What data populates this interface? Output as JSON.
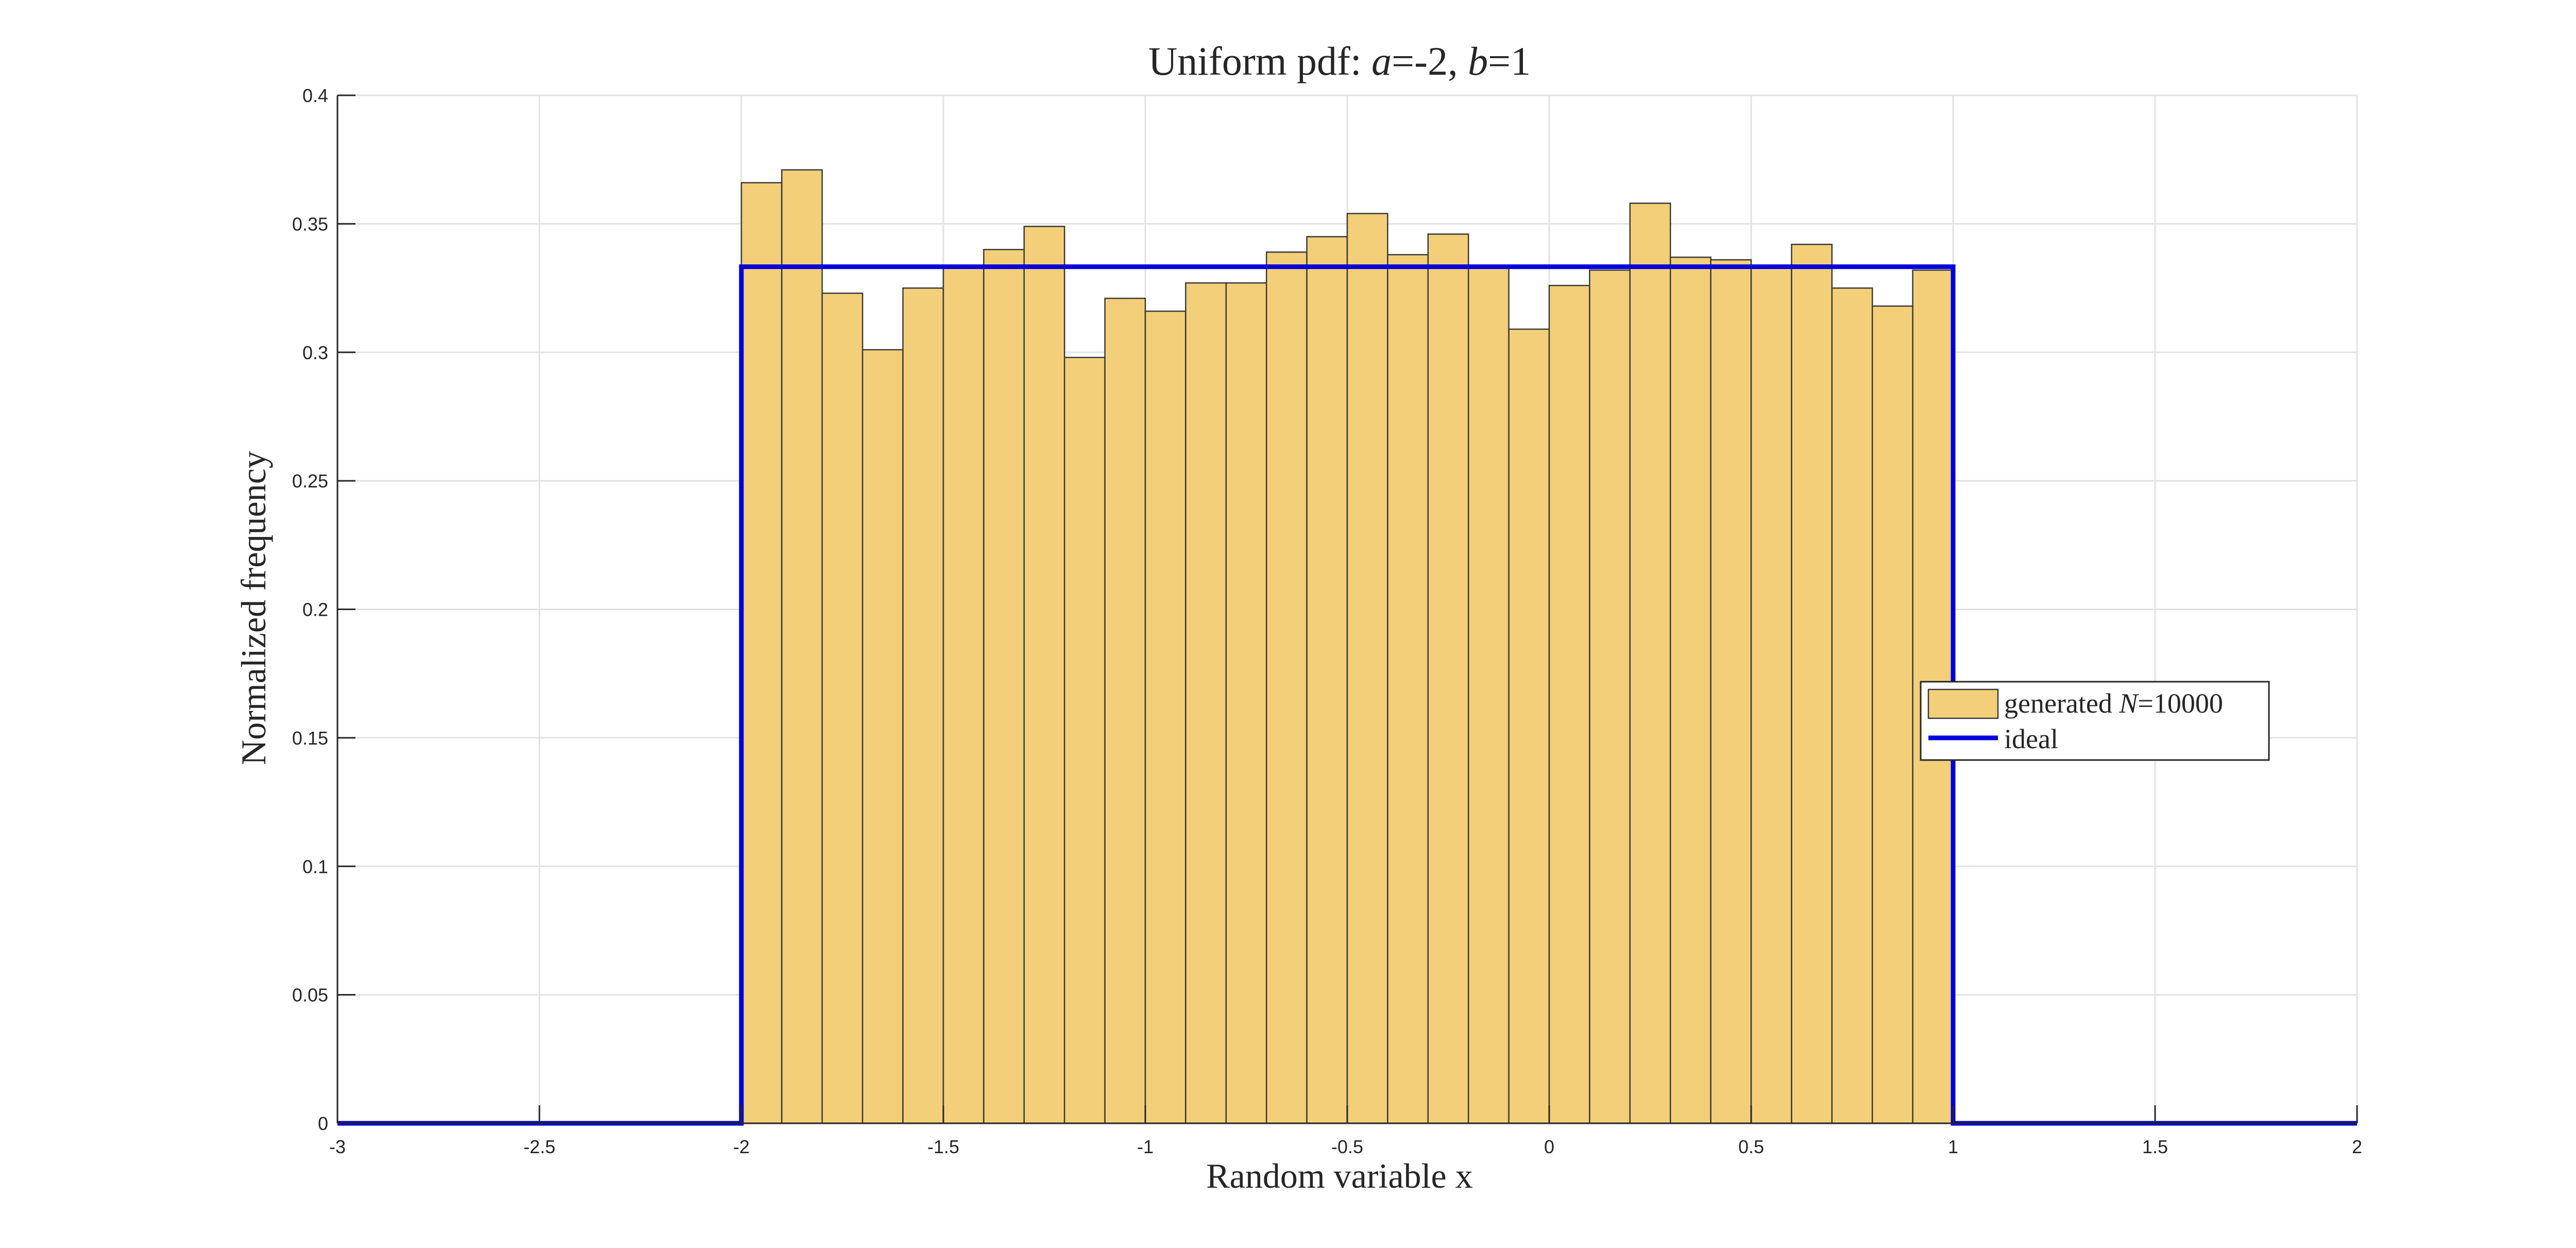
{
  "chart_data": {
    "type": "bar",
    "title": {
      "prefix": "Uniform pdf: ",
      "var_a": "a",
      "eq_a": "=-2, ",
      "var_b": "b",
      "eq_b": "=1"
    },
    "xlabel": "Random variable x",
    "ylabel": "Normalized frequency",
    "xlim": [
      -3,
      2
    ],
    "ylim": [
      0,
      0.4
    ],
    "xticks": [
      -3,
      -2.5,
      -2,
      -1.5,
      -1,
      -0.5,
      0,
      0.5,
      1,
      1.5,
      2
    ],
    "xtick_labels": [
      "-3",
      "-2.5",
      "-2",
      "-1.5",
      "-1",
      "-0.5",
      "0",
      "0.5",
      "1",
      "1.5",
      "2"
    ],
    "yticks": [
      0,
      0.05,
      0.1,
      0.15,
      0.2,
      0.25,
      0.3,
      0.35,
      0.4
    ],
    "ytick_labels": [
      "0",
      "0.05",
      "0.1",
      "0.15",
      "0.2",
      "0.25",
      "0.3",
      "0.35",
      "0.4"
    ],
    "grid": true,
    "legend_position": "right",
    "bin_edges": [
      -2,
      -1.9,
      -1.8,
      -1.7,
      -1.6,
      -1.5,
      -1.4,
      -1.3,
      -1.2,
      -1.1,
      -1,
      -0.9,
      -0.8,
      -0.7,
      -0.6,
      -0.5,
      -0.4,
      -0.3,
      -0.2,
      -0.1,
      0,
      0.1,
      0.2,
      0.3,
      0.4,
      0.5,
      0.6,
      0.7,
      0.8,
      0.9,
      1
    ],
    "values": [
      0.366,
      0.371,
      0.323,
      0.301,
      0.325,
      0.333,
      0.34,
      0.349,
      0.298,
      0.321,
      0.316,
      0.327,
      0.327,
      0.339,
      0.345,
      0.354,
      0.338,
      0.346,
      0.333,
      0.309,
      0.326,
      0.332,
      0.358,
      0.337,
      0.336,
      0.333,
      0.342,
      0.325,
      0.318,
      0.332
    ],
    "series": [
      {
        "legend_prefix": "generated ",
        "legend_var": "N",
        "legend_suffix": "=10000",
        "kind": "histogram",
        "color": "#f2cf78"
      },
      {
        "name": "ideal",
        "kind": "line",
        "color": "#0000dd",
        "x": [
          -3,
          -2,
          -2,
          1,
          1,
          2
        ],
        "y": [
          0,
          0,
          0.3333,
          0.3333,
          0,
          0
        ]
      }
    ]
  }
}
